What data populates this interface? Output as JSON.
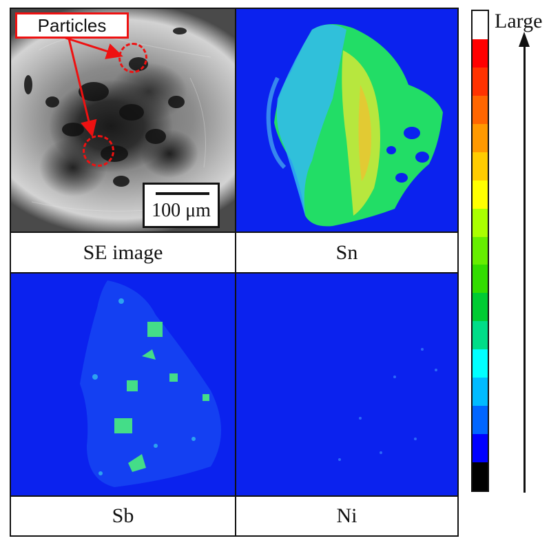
{
  "panels": {
    "se": {
      "label": "SE image"
    },
    "sn": {
      "label": "Sn"
    },
    "sb": {
      "label": "Sb"
    },
    "ni": {
      "label": "Ni"
    }
  },
  "annotation": {
    "particles": "Particles"
  },
  "scalebar": {
    "label": "100 μm"
  },
  "colorbar": {
    "label": "Large",
    "colors": [
      "#ffffff",
      "#ff0000",
      "#ff3300",
      "#ff6600",
      "#ff9900",
      "#ffcc00",
      "#ffff00",
      "#aaff00",
      "#66ee00",
      "#33dd00",
      "#00cc33",
      "#00dd88",
      "#00ffff",
      "#00bbff",
      "#0066ff",
      "#0000ff",
      "#000000"
    ]
  }
}
